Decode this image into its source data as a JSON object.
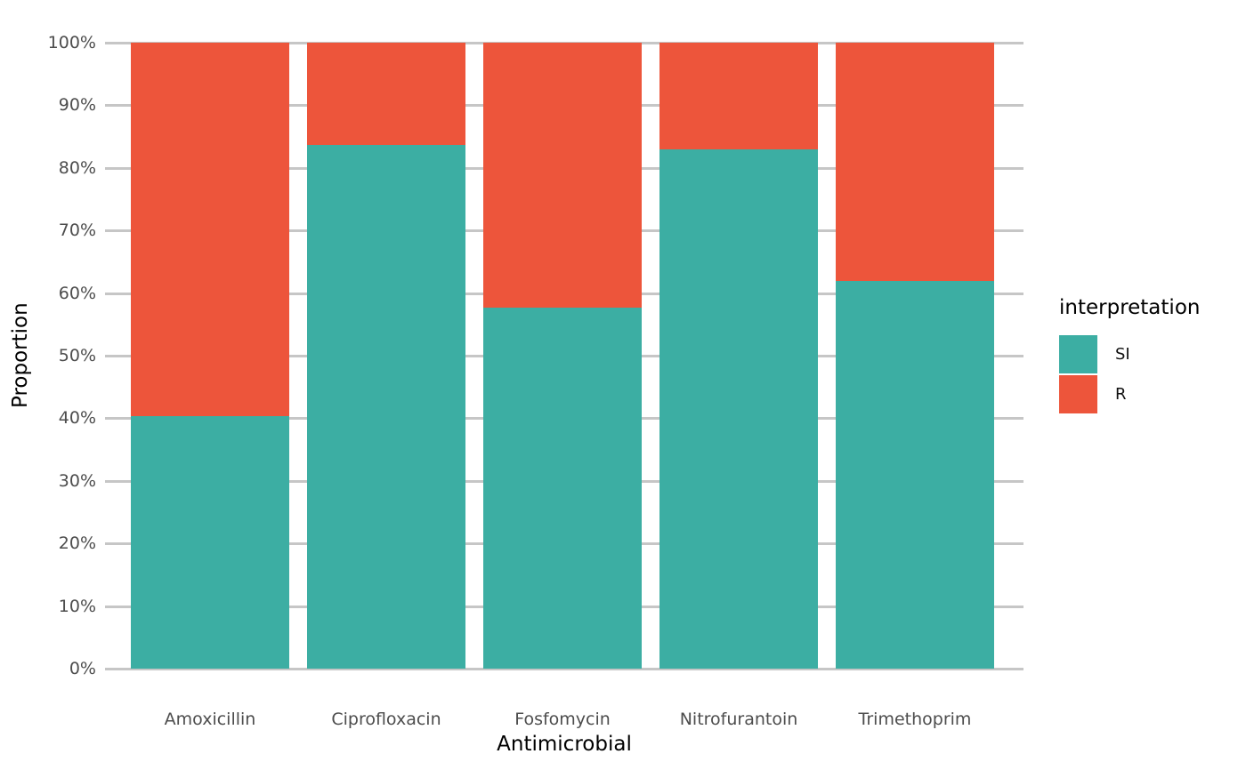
{
  "chart_data": {
    "type": "bar",
    "stacked": true,
    "percent": true,
    "xlabel": "Antimicrobial",
    "ylabel": "Proportion",
    "categories": [
      "Amoxicillin",
      "Ciprofloxacin",
      "Fosfomycin",
      "Nitrofurantoin",
      "Trimethoprim"
    ],
    "series": [
      {
        "name": "SI",
        "color": "#3CAEA3",
        "values": [
          40.4,
          83.7,
          57.7,
          82.9,
          61.9
        ]
      },
      {
        "name": "R",
        "color": "#ED553B",
        "values": [
          59.6,
          16.3,
          42.3,
          17.1,
          38.1
        ]
      }
    ],
    "ylim": [
      0,
      100
    ],
    "y_tick_step": 10,
    "y_tick_labels": [
      "0%",
      "10%",
      "20%",
      "30%",
      "40%",
      "50%",
      "60%",
      "70%",
      "80%",
      "90%",
      "100%"
    ],
    "grid": true,
    "legend": {
      "title": "interpretation",
      "position": "right",
      "entries": [
        "SI",
        "R"
      ]
    },
    "colors": {
      "gridline": "#c6c6c6",
      "tick_text": "#4d4d4d",
      "title_text": "#000000"
    }
  }
}
